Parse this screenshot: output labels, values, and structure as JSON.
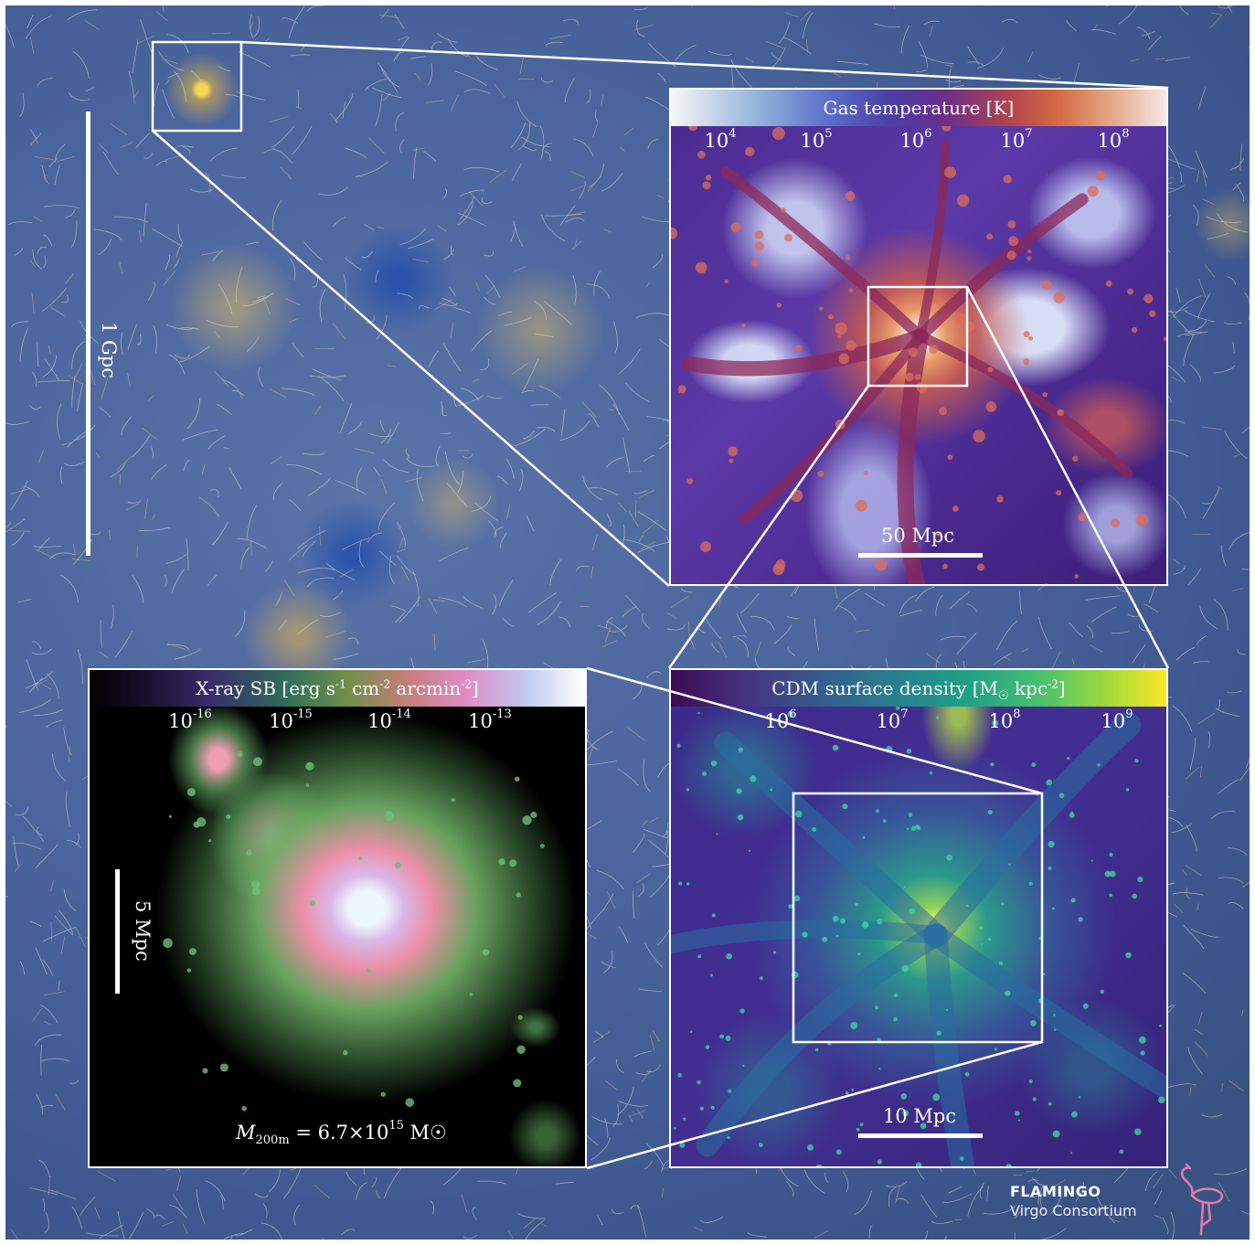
{
  "main_scale": {
    "label": "1 Gpc"
  },
  "gas_panel": {
    "title": "Gas temperature [K]",
    "ticks": [
      {
        "base": "10",
        "exp": "4"
      },
      {
        "base": "10",
        "exp": "5"
      },
      {
        "base": "10",
        "exp": "6"
      },
      {
        "base": "10",
        "exp": "7"
      },
      {
        "base": "10",
        "exp": "8"
      }
    ],
    "scale_label": "50 Mpc"
  },
  "xray_panel": {
    "title_prefix": "X-ray SB [erg s",
    "title_exp1": "-1",
    "title_mid": " cm",
    "title_exp2": "-2",
    "title_mid2": " arcmin",
    "title_exp3": "-2",
    "title_suffix": "]",
    "ticks": [
      {
        "base": "10",
        "exp": "-16"
      },
      {
        "base": "10",
        "exp": "-15"
      },
      {
        "base": "10",
        "exp": "-14"
      },
      {
        "base": "10",
        "exp": "-13"
      }
    ],
    "scale_label": "5 Mpc",
    "mass": {
      "symbol": "M",
      "sub": "200m",
      "value": " = 6.7×10",
      "exp": "15",
      "unit": " M☉"
    }
  },
  "cdm_panel": {
    "title_prefix": "CDM surface density [M",
    "title_sub": "☉",
    "title_mid": " kpc",
    "title_exp": "-2",
    "title_suffix": "]",
    "ticks": [
      {
        "base": "10",
        "exp": "6"
      },
      {
        "base": "10",
        "exp": "7"
      },
      {
        "base": "10",
        "exp": "8"
      },
      {
        "base": "10",
        "exp": "9"
      }
    ],
    "scale_label": "10 Mpc"
  },
  "credit": {
    "line1": "FLAMINGO",
    "line2": "Virgo Consortium"
  },
  "icons": {
    "logo": "flamingo-icon"
  }
}
